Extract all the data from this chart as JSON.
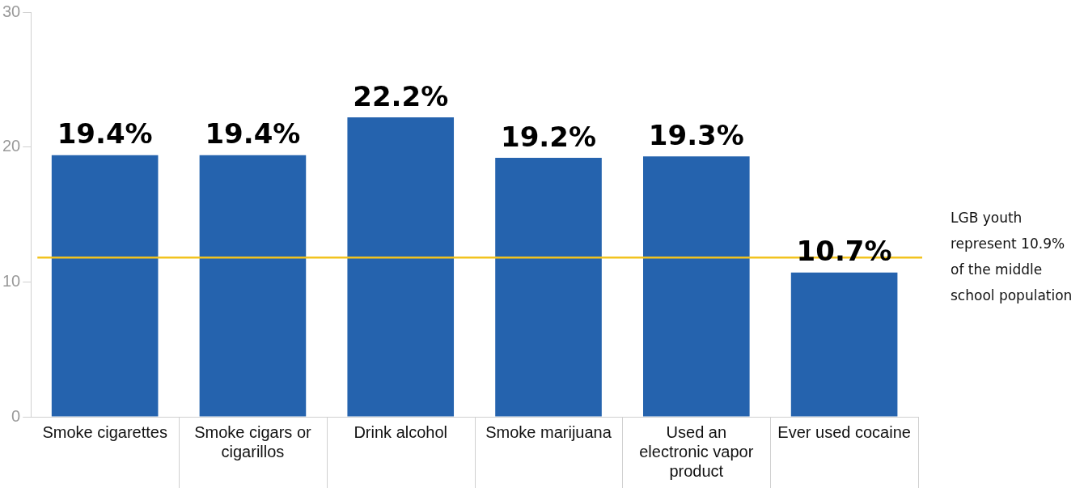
{
  "chart_data": {
    "type": "bar",
    "categories": [
      "Smoke cigarettes",
      "Smoke cigars or cigarillos",
      "Drink alcohol",
      "Smoke marijuana",
      "Used an electronic vapor product",
      "Ever used cocaine"
    ],
    "values": [
      19.4,
      19.4,
      22.2,
      19.2,
      19.3,
      10.7
    ],
    "value_labels": [
      "19.4%",
      "19.4%",
      "22.2%",
      "19.2%",
      "19.3%",
      "10.7%"
    ],
    "color": "#2563ae",
    "ylim": [
      0,
      30
    ],
    "yticks": [
      0,
      10,
      20,
      30
    ],
    "grid": false,
    "legend": false,
    "ref_lines": [
      {
        "axis": "y",
        "value": 11.8,
        "label": "LGB youth represent 10.9% of the middle school population",
        "color": "#f2c31f"
      }
    ]
  }
}
